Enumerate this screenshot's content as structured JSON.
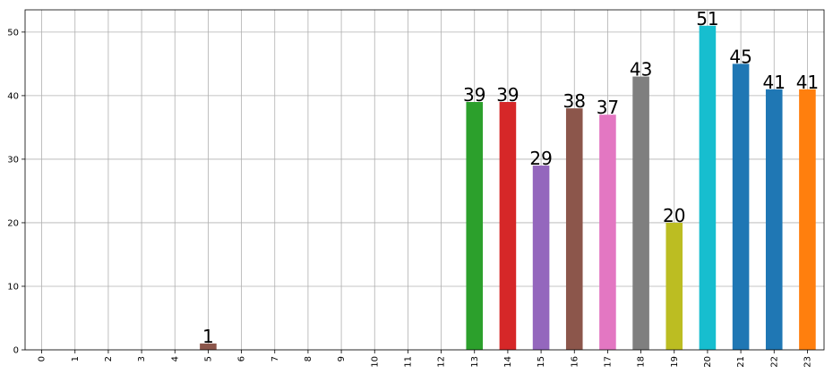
{
  "chart_data": {
    "type": "bar",
    "categories": [
      "0",
      "1",
      "2",
      "3",
      "4",
      "5",
      "6",
      "7",
      "8",
      "9",
      "10",
      "11",
      "12",
      "13",
      "14",
      "15",
      "16",
      "17",
      "18",
      "19",
      "20",
      "21",
      "22",
      "23"
    ],
    "values": [
      0,
      0,
      0,
      0,
      0,
      1,
      0,
      0,
      0,
      0,
      0,
      0,
      0,
      39,
      39,
      29,
      38,
      37,
      43,
      20,
      51,
      45,
      41,
      41
    ],
    "data_labels": {
      "5": "1",
      "13": "39",
      "14": "39",
      "15": "29",
      "16": "38",
      "17": "37",
      "18": "43",
      "19": "20",
      "20": "51",
      "21": "45",
      "22": "41",
      "23": "41"
    },
    "bar_colors": [
      "#1f77b4",
      "#ff7f0e",
      "#2ca02c",
      "#d62728",
      "#9467bd",
      "#8c564b",
      "#e377c2",
      "#7f7f7f",
      "#bcbd22",
      "#17becf",
      "#1f77b4",
      "#ff7f0e",
      "#2ca02c",
      "#2ca02c",
      "#d62728",
      "#9467bd",
      "#8c564b",
      "#e377c2",
      "#7f7f7f",
      "#bcbd22",
      "#17becf",
      "#1f77b4",
      "#1f77b4",
      "#ff7f0e"
    ],
    "y_ticks": [
      0,
      10,
      20,
      30,
      40,
      50
    ],
    "ylim": [
      0,
      53.5
    ],
    "grid": true,
    "title": "",
    "xlabel": "",
    "ylabel": ""
  }
}
